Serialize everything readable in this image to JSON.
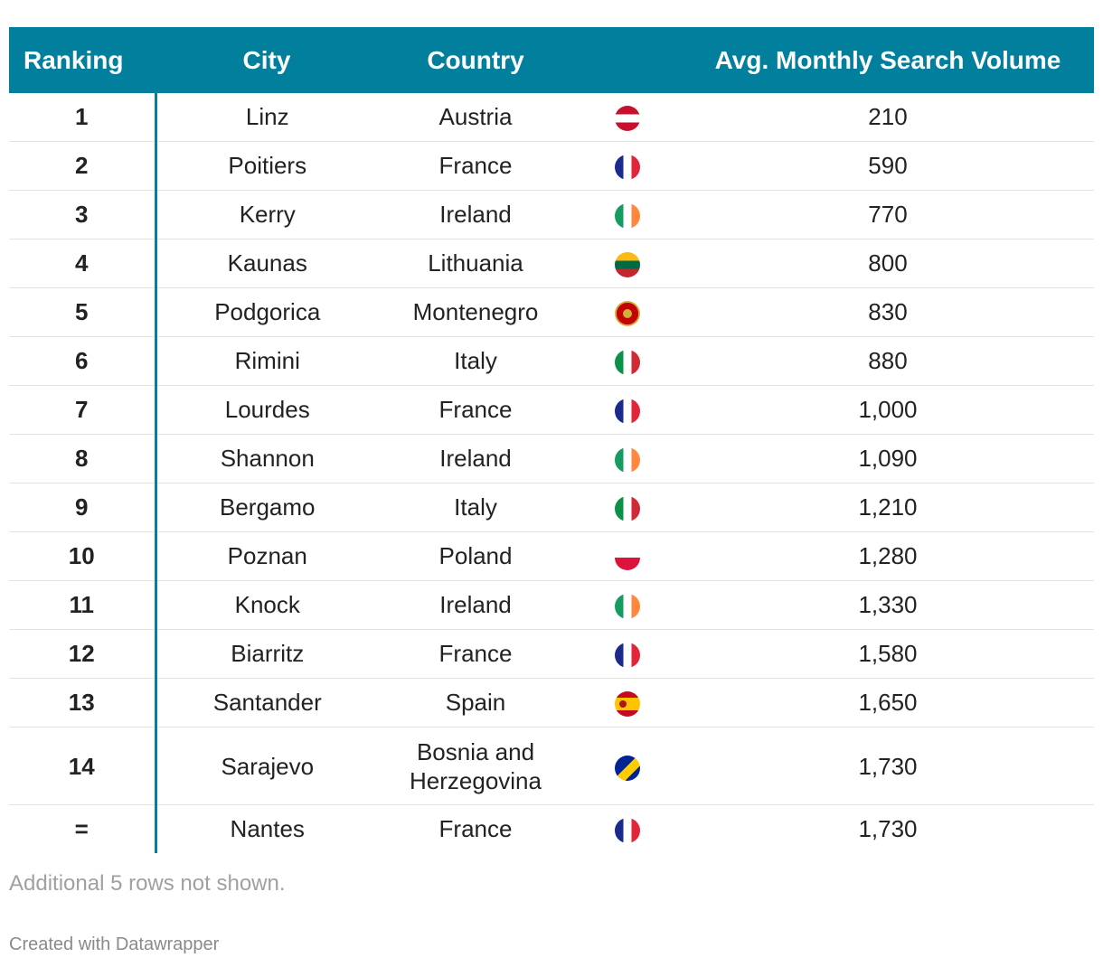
{
  "table": {
    "headers": {
      "rank": "Ranking",
      "city": "City",
      "country": "Country",
      "flag": "",
      "volume": "Avg. Monthly Search Volume"
    }
  },
  "chart_data": {
    "type": "table",
    "title": "",
    "columns": [
      "Ranking",
      "City",
      "Country",
      "",
      "Avg. Monthly Search Volume"
    ],
    "rows": [
      {
        "rank": "1",
        "city": "Linz",
        "country": "Austria",
        "volume": 210,
        "volume_label": "210",
        "flag": "austria-flag-icon"
      },
      {
        "rank": "2",
        "city": "Poitiers",
        "country": "France",
        "volume": 590,
        "volume_label": "590",
        "flag": "france-flag-icon"
      },
      {
        "rank": "3",
        "city": "Kerry",
        "country": "Ireland",
        "volume": 770,
        "volume_label": "770",
        "flag": "ireland-flag-icon"
      },
      {
        "rank": "4",
        "city": "Kaunas",
        "country": "Lithuania",
        "volume": 800,
        "volume_label": "800",
        "flag": "lithuania-flag-icon"
      },
      {
        "rank": "5",
        "city": "Podgorica",
        "country": "Montenegro",
        "volume": 830,
        "volume_label": "830",
        "flag": "montenegro-flag-icon"
      },
      {
        "rank": "6",
        "city": "Rimini",
        "country": "Italy",
        "volume": 880,
        "volume_label": "880",
        "flag": "italy-flag-icon"
      },
      {
        "rank": "7",
        "city": "Lourdes",
        "country": "France",
        "volume": 1000,
        "volume_label": "1,000",
        "flag": "france-flag-icon"
      },
      {
        "rank": "8",
        "city": "Shannon",
        "country": "Ireland",
        "volume": 1090,
        "volume_label": "1,090",
        "flag": "ireland-flag-icon"
      },
      {
        "rank": "9",
        "city": "Bergamo",
        "country": "Italy",
        "volume": 1210,
        "volume_label": "1,210",
        "flag": "italy-flag-icon"
      },
      {
        "rank": "10",
        "city": "Poznan",
        "country": "Poland",
        "volume": 1280,
        "volume_label": "1,280",
        "flag": "poland-flag-icon"
      },
      {
        "rank": "11",
        "city": "Knock",
        "country": "Ireland",
        "volume": 1330,
        "volume_label": "1,330",
        "flag": "ireland-flag-icon"
      },
      {
        "rank": "12",
        "city": "Biarritz",
        "country": "France",
        "volume": 1580,
        "volume_label": "1,580",
        "flag": "france-flag-icon"
      },
      {
        "rank": "13",
        "city": "Santander",
        "country": "Spain",
        "volume": 1650,
        "volume_label": "1,650",
        "flag": "spain-flag-icon"
      },
      {
        "rank": "14",
        "city": "Sarajevo",
        "country": "Bosnia and Herzegovina",
        "country_lines": [
          "Bosnia and",
          "Herzegovina"
        ],
        "volume": 1730,
        "volume_label": "1,730",
        "flag": "bosnia-flag-icon"
      },
      {
        "rank": "=",
        "city": "Nantes",
        "country": "France",
        "volume": 1730,
        "volume_label": "1,730",
        "flag": "france-flag-icon"
      }
    ]
  },
  "colors": {
    "header_bg": "#017f9c",
    "header_text": "#ffffff",
    "rank_divider": "#017f9c"
  },
  "footer": {
    "note": "Additional 5 rows not shown.",
    "credit": "Created with Datawrapper"
  }
}
